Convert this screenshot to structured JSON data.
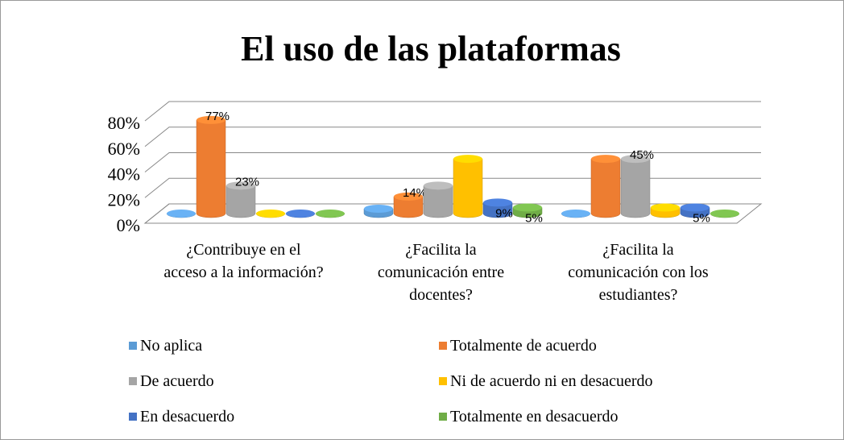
{
  "chart_data": {
    "type": "bar3d",
    "title": "El uso de las plataformas",
    "categories": [
      "¿Contribuye en el acceso a la información?",
      "¿Facilita la comunicación entre docentes?",
      "¿Facilita la comunicación con los estudiantes?"
    ],
    "series": [
      {
        "name": "No aplica",
        "color": "#5B9BD5",
        "values": [
          0,
          4,
          0
        ],
        "value_labels": [
          null,
          null,
          null
        ]
      },
      {
        "name": "Totalmente de acuerdo",
        "color": "#ED7D31",
        "values": [
          77,
          14,
          45
        ],
        "value_labels": [
          "77%",
          "14%",
          null
        ]
      },
      {
        "name": "De acuerdo",
        "color": "#A5A5A5",
        "values": [
          23,
          23,
          45
        ],
        "value_labels": [
          "23%",
          null,
          "45%"
        ]
      },
      {
        "name": "Ni de acuerdo ni en desacuerdo",
        "color": "#FFC000",
        "values": [
          0,
          45,
          5
        ],
        "value_labels": [
          null,
          null,
          null
        ]
      },
      {
        "name": "En desacuerdo",
        "color": "#4472C4",
        "values": [
          0,
          9,
          5
        ],
        "value_labels": [
          null,
          "9%",
          "5%"
        ]
      },
      {
        "name": "Totalmente en desacuerdo",
        "color": "#70AD47",
        "values": [
          0,
          5,
          0
        ],
        "value_labels": [
          null,
          "5%",
          null
        ]
      }
    ],
    "ylim": [
      0,
      80
    ],
    "yticks": [
      {
        "value": 0,
        "label": "0%"
      },
      {
        "value": 20,
        "label": "20%"
      },
      {
        "value": 40,
        "label": "40%"
      },
      {
        "value": 60,
        "label": "60%"
      },
      {
        "value": 80,
        "label": "80%"
      }
    ],
    "grid": true,
    "legend": "bottom"
  }
}
